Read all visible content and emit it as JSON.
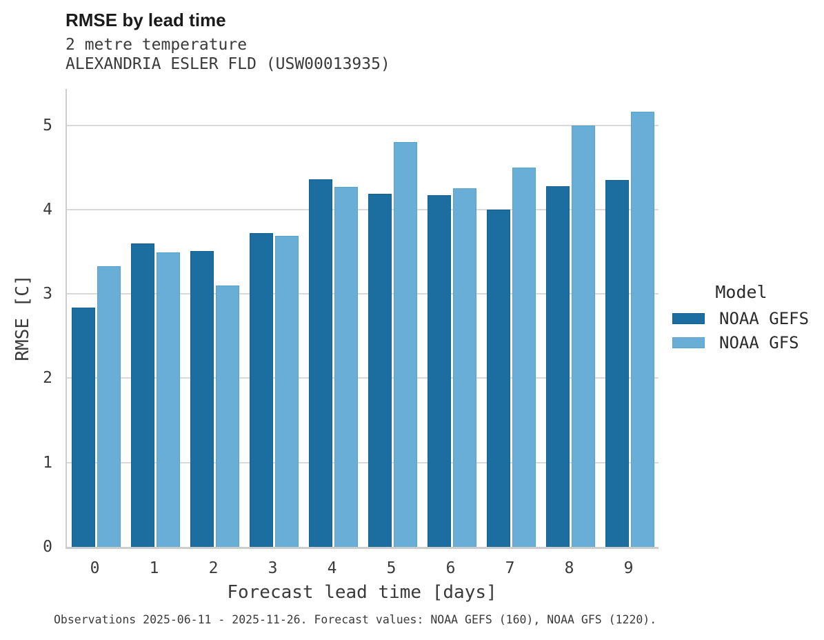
{
  "header": {
    "title": "RMSE by lead time",
    "subtitle1": "2 metre temperature",
    "subtitle2": "ALEXANDRIA ESLER FLD (USW00013935)"
  },
  "chart_data": {
    "type": "bar",
    "title": "RMSE by lead time",
    "subtitle": "2 metre temperature — ALEXANDRIA ESLER FLD (USW00013935)",
    "xlabel": "Forecast lead time [days]",
    "ylabel": "RMSE [C]",
    "categories": [
      "0",
      "1",
      "2",
      "3",
      "4",
      "5",
      "6",
      "7",
      "8",
      "9"
    ],
    "series": [
      {
        "name": "NOAA GEFS",
        "color": "#1c6ea0",
        "border_color": "#155f8d",
        "values": [
          2.84,
          3.6,
          3.51,
          3.72,
          4.36,
          4.19,
          4.17,
          4.0,
          4.28,
          4.35
        ]
      },
      {
        "name": "NOAA GFS",
        "color": "#68aed7",
        "border_color": "#57a2cd",
        "values": [
          3.33,
          3.49,
          3.1,
          3.69,
          4.27,
          4.8,
          4.25,
          4.5,
          5.0,
          5.16
        ]
      }
    ],
    "ylim": [
      0,
      5.43
    ],
    "yticks": [
      0,
      1,
      2,
      3,
      4,
      5
    ],
    "grid": true,
    "gridline_color": "#d9d9d9",
    "legend_title": "Model",
    "legend_position": "right"
  },
  "footer": {
    "caption": "Observations 2025-06-11 - 2025-11-26. Forecast values: NOAA GEFS (160), NOAA GFS (1220)."
  }
}
